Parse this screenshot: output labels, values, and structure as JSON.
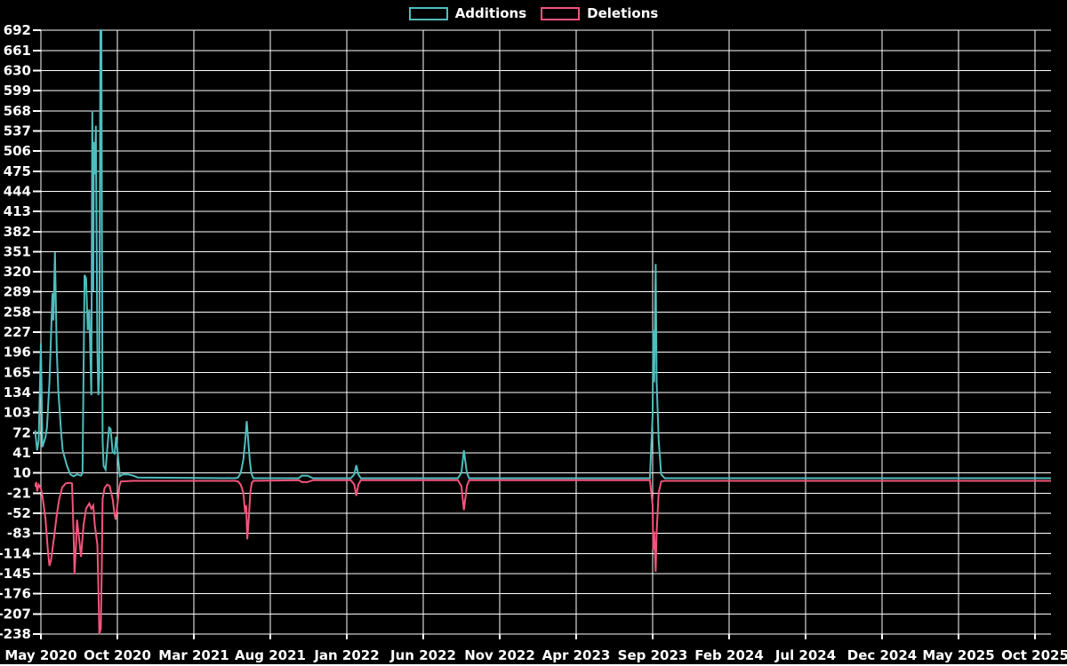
{
  "legend": {
    "items": [
      {
        "label": "Additions"
      },
      {
        "label": "Deletions"
      }
    ]
  },
  "chart_data": {
    "type": "line",
    "title": "",
    "legend_position": "top-center",
    "background_color": "#000000",
    "grid_color": "#ffffff",
    "text_color": "#ffffff",
    "x_axis": {
      "tick_labels": [
        "May 2020",
        "Oct 2020",
        "Mar 2021",
        "Aug 2021",
        "Jan 2022",
        "Jun 2022",
        "Nov 2022",
        "Apr 2023",
        "Sep 2023",
        "Feb 2024",
        "Jul 2024",
        "Dec 2024",
        "May 2025",
        "Oct 2025"
      ],
      "tick_interval": "5 months",
      "range_start": "2020-04-20",
      "range_end": "2025-11-01"
    },
    "y_axis": {
      "min": -238,
      "max": 692,
      "tick_step": 31,
      "tick_labels": [
        692,
        661,
        630,
        599,
        568,
        537,
        506,
        475,
        444,
        413,
        382,
        351,
        320,
        289,
        258,
        227,
        196,
        165,
        134,
        103,
        72,
        41,
        10,
        -21,
        -52,
        -83,
        -114,
        -145,
        -176,
        -207,
        -238
      ]
    },
    "series": [
      {
        "name": "Additions",
        "color": "#4fbdbd",
        "points": [
          [
            "2020-04-20",
            75
          ],
          [
            "2020-04-24",
            45
          ],
          [
            "2020-04-27",
            60
          ],
          [
            "2020-05-01",
            210
          ],
          [
            "2020-05-04",
            50
          ],
          [
            "2020-05-10",
            65
          ],
          [
            "2020-05-13",
            80
          ],
          [
            "2020-05-18",
            150
          ],
          [
            "2020-05-24",
            287
          ],
          [
            "2020-05-26",
            245
          ],
          [
            "2020-05-29",
            350
          ],
          [
            "2020-06-02",
            200
          ],
          [
            "2020-06-05",
            138
          ],
          [
            "2020-06-11",
            70
          ],
          [
            "2020-06-14",
            45
          ],
          [
            "2020-06-22",
            22
          ],
          [
            "2020-06-29",
            8
          ],
          [
            "2020-07-05",
            5
          ],
          [
            "2020-07-12",
            8
          ],
          [
            "2020-07-20",
            6
          ],
          [
            "2020-07-23",
            10
          ],
          [
            "2020-07-27",
            315
          ],
          [
            "2020-07-30",
            310
          ],
          [
            "2020-08-03",
            230
          ],
          [
            "2020-08-06",
            262
          ],
          [
            "2020-08-10",
            130
          ],
          [
            "2020-08-12",
            568
          ],
          [
            "2020-08-14",
            290
          ],
          [
            "2020-08-15",
            520
          ],
          [
            "2020-08-17",
            470
          ],
          [
            "2020-08-19",
            545
          ],
          [
            "2020-08-22",
            200
          ],
          [
            "2020-08-24",
            130
          ],
          [
            "2020-08-26",
            160
          ],
          [
            "2020-08-28",
            692
          ],
          [
            "2020-08-30",
            692
          ],
          [
            "2020-08-31",
            400
          ],
          [
            "2020-09-02",
            60
          ],
          [
            "2020-09-04",
            21
          ],
          [
            "2020-09-08",
            15
          ],
          [
            "2020-09-11",
            45
          ],
          [
            "2020-09-15",
            80
          ],
          [
            "2020-09-18",
            78
          ],
          [
            "2020-09-22",
            42
          ],
          [
            "2020-09-26",
            40
          ],
          [
            "2020-09-29",
            66
          ],
          [
            "2020-10-03",
            30
          ],
          [
            "2020-10-06",
            5
          ],
          [
            "2020-10-12",
            8
          ],
          [
            "2020-10-22",
            8
          ],
          [
            "2020-11-02",
            6
          ],
          [
            "2020-11-11",
            3
          ],
          [
            "2021-05-23",
            2
          ],
          [
            "2021-05-28",
            3
          ],
          [
            "2021-06-03",
            10
          ],
          [
            "2021-06-08",
            30
          ],
          [
            "2021-06-12",
            60
          ],
          [
            "2021-06-15",
            90
          ],
          [
            "2021-06-17",
            70
          ],
          [
            "2021-06-21",
            30
          ],
          [
            "2021-06-24",
            10
          ],
          [
            "2021-06-28",
            2
          ],
          [
            "2021-09-27",
            2
          ],
          [
            "2021-10-03",
            6
          ],
          [
            "2021-10-14",
            6
          ],
          [
            "2021-10-25",
            2
          ],
          [
            "2022-01-09",
            2
          ],
          [
            "2022-01-16",
            8
          ],
          [
            "2022-01-20",
            22
          ],
          [
            "2022-01-24",
            8
          ],
          [
            "2022-01-29",
            2
          ],
          [
            "2022-08-09",
            2
          ],
          [
            "2022-08-16",
            10
          ],
          [
            "2022-08-21",
            45
          ],
          [
            "2022-08-27",
            10
          ],
          [
            "2022-09-01",
            2
          ],
          [
            "2023-08-26",
            2
          ],
          [
            "2023-09-01",
            100
          ],
          [
            "2023-09-02",
            230
          ],
          [
            "2023-09-04",
            150
          ],
          [
            "2023-09-07",
            332
          ],
          [
            "2023-09-09",
            150
          ],
          [
            "2023-09-13",
            60
          ],
          [
            "2023-09-18",
            8
          ],
          [
            "2023-09-25",
            2
          ],
          [
            "2025-11-01",
            2
          ]
        ]
      },
      {
        "name": "Deletions",
        "color": "#f2557b",
        "points": [
          [
            "2020-04-20",
            -10
          ],
          [
            "2020-04-22",
            -4
          ],
          [
            "2020-04-24",
            -18
          ],
          [
            "2020-04-27",
            -8
          ],
          [
            "2020-05-01",
            -14
          ],
          [
            "2020-05-04",
            -25
          ],
          [
            "2020-05-10",
            -60
          ],
          [
            "2020-05-15",
            -110
          ],
          [
            "2020-05-18",
            -133
          ],
          [
            "2020-05-21",
            -125
          ],
          [
            "2020-05-27",
            -90
          ],
          [
            "2020-06-02",
            -55
          ],
          [
            "2020-06-07",
            -30
          ],
          [
            "2020-06-13",
            -12
          ],
          [
            "2020-06-20",
            -6
          ],
          [
            "2020-06-27",
            -5
          ],
          [
            "2020-07-02",
            -6
          ],
          [
            "2020-07-05",
            -80
          ],
          [
            "2020-07-07",
            -146
          ],
          [
            "2020-07-10",
            -100
          ],
          [
            "2020-07-12",
            -62
          ],
          [
            "2020-07-16",
            -90
          ],
          [
            "2020-07-20",
            -119
          ],
          [
            "2020-07-25",
            -70
          ],
          [
            "2020-07-30",
            -45
          ],
          [
            "2020-08-06",
            -37
          ],
          [
            "2020-08-10",
            -45
          ],
          [
            "2020-08-14",
            -40
          ],
          [
            "2020-08-17",
            -70
          ],
          [
            "2020-08-22",
            -100
          ],
          [
            "2020-08-25",
            -200
          ],
          [
            "2020-08-26",
            -238
          ],
          [
            "2020-08-29",
            -230
          ],
          [
            "2020-08-31",
            -120
          ],
          [
            "2020-09-02",
            -30
          ],
          [
            "2020-09-06",
            -13
          ],
          [
            "2020-09-11",
            -8
          ],
          [
            "2020-09-16",
            -10
          ],
          [
            "2020-09-22",
            -30
          ],
          [
            "2020-09-26",
            -55
          ],
          [
            "2020-09-28",
            -62
          ],
          [
            "2020-10-01",
            -40
          ],
          [
            "2020-10-05",
            -10
          ],
          [
            "2020-10-08",
            -3
          ],
          [
            "2020-11-01",
            -2
          ],
          [
            "2021-05-23",
            -2
          ],
          [
            "2021-05-28",
            -3
          ],
          [
            "2021-06-03",
            -8
          ],
          [
            "2021-06-08",
            -20
          ],
          [
            "2021-06-12",
            -52
          ],
          [
            "2021-06-14",
            -40
          ],
          [
            "2021-06-16",
            -92
          ],
          [
            "2021-06-19",
            -60
          ],
          [
            "2021-06-22",
            -20
          ],
          [
            "2021-06-25",
            -5
          ],
          [
            "2021-06-28",
            -2
          ],
          [
            "2021-09-27",
            -1
          ],
          [
            "2021-10-03",
            -4
          ],
          [
            "2021-10-14",
            -4
          ],
          [
            "2021-10-25",
            -1
          ],
          [
            "2022-01-09",
            -1
          ],
          [
            "2022-01-16",
            -8
          ],
          [
            "2022-01-20",
            -25
          ],
          [
            "2022-01-24",
            -8
          ],
          [
            "2022-01-29",
            -1
          ],
          [
            "2022-08-09",
            -1
          ],
          [
            "2022-08-16",
            -10
          ],
          [
            "2022-08-21",
            -47
          ],
          [
            "2022-08-27",
            -10
          ],
          [
            "2022-09-01",
            -1
          ],
          [
            "2023-08-26",
            -1
          ],
          [
            "2023-09-01",
            -40
          ],
          [
            "2023-09-02",
            -108
          ],
          [
            "2023-09-04",
            -80
          ],
          [
            "2023-09-07",
            -142
          ],
          [
            "2023-09-09",
            -80
          ],
          [
            "2023-09-13",
            -20
          ],
          [
            "2023-09-18",
            -3
          ],
          [
            "2023-09-25",
            -2
          ],
          [
            "2025-11-01",
            -2
          ]
        ]
      }
    ]
  }
}
